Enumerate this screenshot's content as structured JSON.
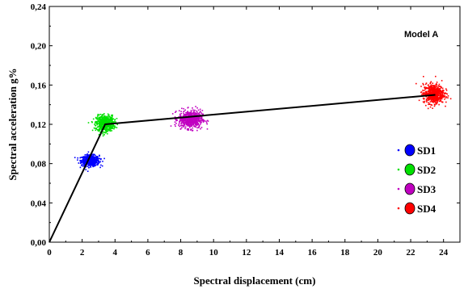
{
  "chart_data": {
    "type": "scatter",
    "title": "",
    "annotation": "Model A",
    "xlabel": "Spectral displacement (cm)",
    "ylabel": "Spectral acceleration g%",
    "xlim": [
      0,
      25
    ],
    "ylim": [
      0,
      0.24
    ],
    "x_ticks": [
      "0",
      "2",
      "4",
      "6",
      "8",
      "10",
      "12",
      "14",
      "16",
      "18",
      "20",
      "22",
      "24"
    ],
    "y_ticks": [
      "0,00",
      "0,04",
      "0,08",
      "0,12",
      "0,16",
      "0,20",
      "0,24"
    ],
    "grid": false,
    "legend_position": "right",
    "capacity_curve": {
      "x": [
        0,
        3.4,
        23.5
      ],
      "y": [
        0,
        0.12,
        0.15
      ],
      "color": "#000000"
    },
    "series": [
      {
        "name": "SD1",
        "color": "#0000ff",
        "center_x": 2.5,
        "center_y": 0.083,
        "spread_x": 0.6,
        "spread_y": 0.006,
        "count": 600
      },
      {
        "name": "SD2",
        "color": "#00e000",
        "center_x": 3.4,
        "center_y": 0.121,
        "spread_x": 0.6,
        "spread_y": 0.009,
        "count": 600
      },
      {
        "name": "SD3",
        "color": "#c000c0",
        "center_x": 8.6,
        "center_y": 0.125,
        "spread_x": 0.8,
        "spread_y": 0.01,
        "count": 600
      },
      {
        "name": "SD4",
        "color": "#ff0000",
        "center_x": 23.4,
        "center_y": 0.151,
        "spread_x": 0.7,
        "spread_y": 0.011,
        "count": 600
      }
    ]
  }
}
